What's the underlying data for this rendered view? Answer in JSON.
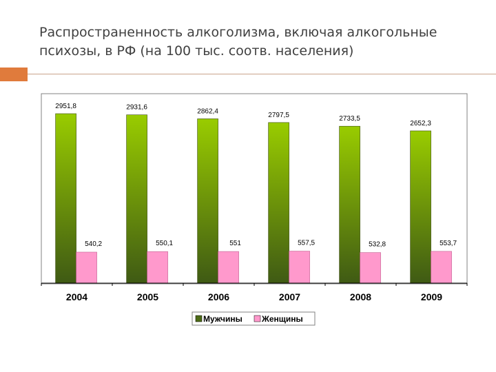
{
  "slide": {
    "title": "Распространенность алкоголизма, включая алкогольные психозы, в РФ (на 100 тыс. соотв. населения)"
  },
  "colors": {
    "accent": "#e07b3c",
    "men_top": "#99cc00",
    "men_bottom": "#3f5a14",
    "women": "#ff99cc"
  },
  "chart_data": {
    "type": "bar",
    "categories": [
      "2004",
      "2005",
      "2006",
      "2007",
      "2008",
      "2009"
    ],
    "series": [
      {
        "name": "Мужчины",
        "values": [
          2951.8,
          2931.6,
          2862.4,
          2797.5,
          2733.5,
          2652.3
        ],
        "labels": [
          "2951,8",
          "2931,6",
          "2862,4",
          "2797,5",
          "2733,5",
          "2652,3"
        ]
      },
      {
        "name": "Женщины",
        "values": [
          540.2,
          550.1,
          551,
          557.5,
          532.8,
          553.7
        ],
        "labels": [
          "540,2",
          "550,1",
          "551",
          "557,5",
          "532,8",
          "553,7"
        ]
      }
    ],
    "ylim": [
      0,
      3300
    ],
    "legend_position": "bottom",
    "grid": false
  }
}
